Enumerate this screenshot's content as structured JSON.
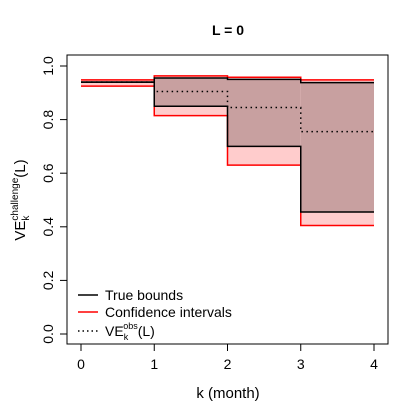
{
  "chart_data": {
    "type": "line",
    "title": "L =  0",
    "xlabel": "k (month)",
    "ylabel": {
      "base": "VE",
      "sub": "k",
      "sup": "challenge",
      "suffix": "(L)"
    },
    "xlim": [
      0,
      4
    ],
    "ylim": [
      0,
      1
    ],
    "xticks": [
      "0",
      "1",
      "2",
      "3",
      "4"
    ],
    "yticks": [
      "0.0",
      "0.2",
      "0.4",
      "0.6",
      "0.8",
      "1.0"
    ],
    "grid": false,
    "legend_position": "bottom-left",
    "colors": {
      "true_bounds": "#000000",
      "confidence_intervals": "#ff0000",
      "ci_fill": "#ffcccc",
      "bounds_fill": "#c8a0a0",
      "observed": "#000000"
    },
    "steps": [
      {
        "x0": 0,
        "x1": 1,
        "true_lower": 0.94,
        "true_upper": 0.94,
        "ci_lower": 0.925,
        "ci_upper": 0.948,
        "observed": 0.94
      },
      {
        "x0": 1,
        "x1": 2,
        "true_lower": 0.85,
        "true_upper": 0.955,
        "ci_lower": 0.815,
        "ci_upper": 0.963,
        "observed": 0.905
      },
      {
        "x0": 2,
        "x1": 3,
        "true_lower": 0.7,
        "true_upper": 0.95,
        "ci_lower": 0.63,
        "ci_upper": 0.958,
        "observed": 0.845
      },
      {
        "x0": 3,
        "x1": 4,
        "true_lower": 0.455,
        "true_upper": 0.938,
        "ci_lower": 0.405,
        "ci_upper": 0.948,
        "observed": 0.755
      }
    ],
    "legend": [
      {
        "key": "true_bounds",
        "style": "solid",
        "label": "True bounds"
      },
      {
        "key": "confidence_intervals",
        "style": "solid",
        "label": "Confidence intervals"
      },
      {
        "key": "observed",
        "style": "dotted",
        "label": {
          "base": "VE",
          "sub": "k",
          "sup": "obs",
          "suffix": "(L)"
        }
      }
    ]
  }
}
